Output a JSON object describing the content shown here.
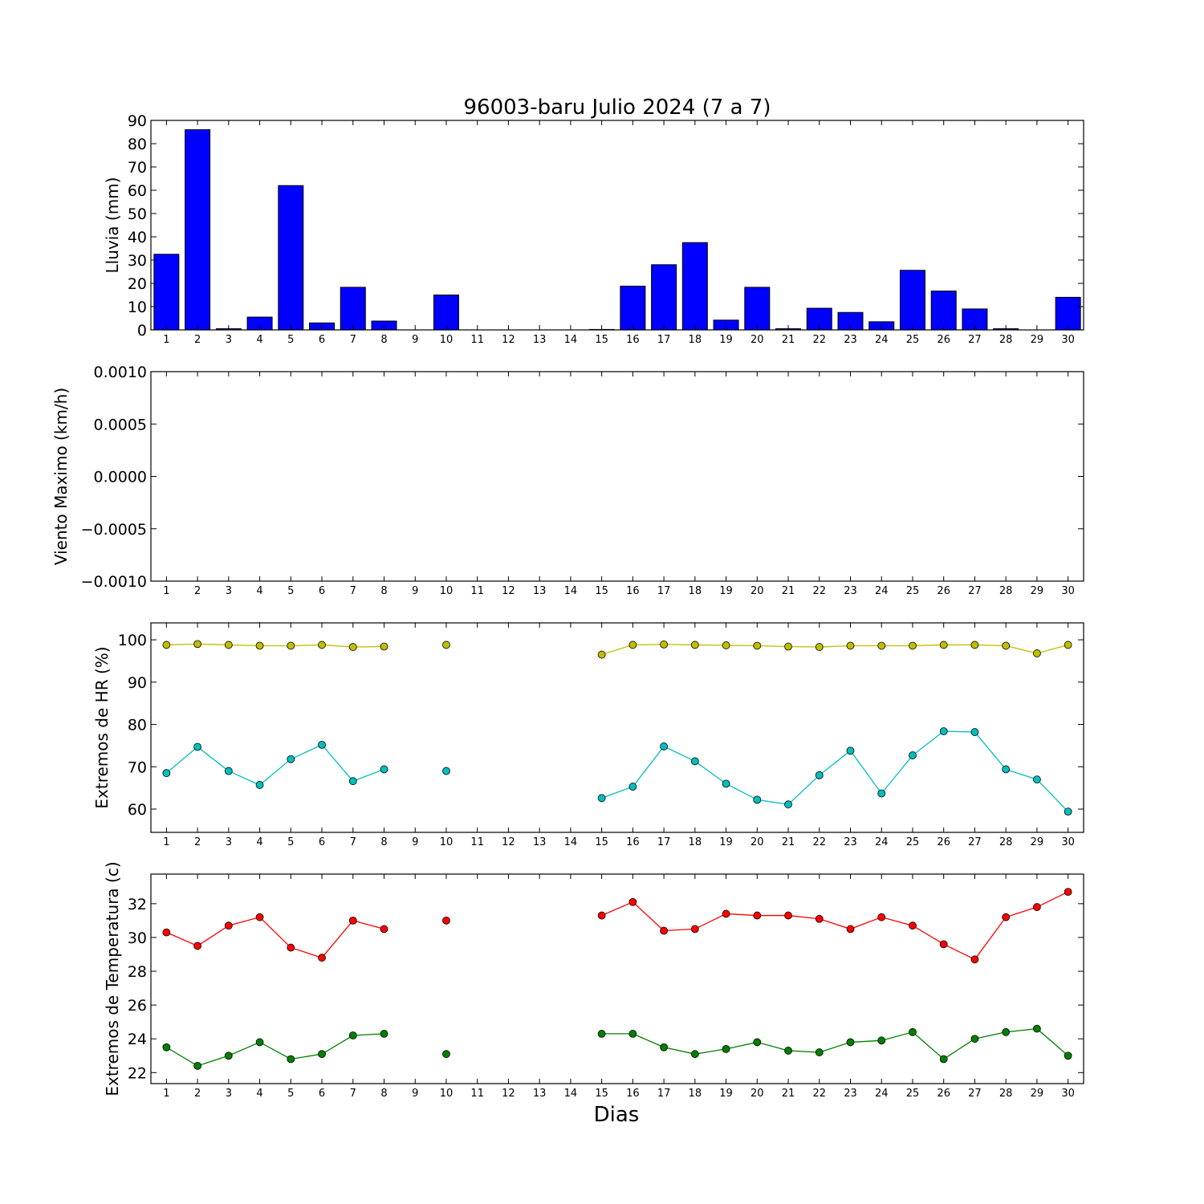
{
  "figure": {
    "title": "96003-baru Julio 2024  (7 a 7)",
    "xlabel": "Dias"
  },
  "chart_data": [
    {
      "type": "bar",
      "ylabel": "Lluvia (mm)",
      "ylim": [
        0,
        90
      ],
      "yticks": [
        0,
        10,
        20,
        30,
        40,
        50,
        60,
        70,
        80,
        90
      ],
      "ytick_labels": [
        "0",
        "10",
        "20",
        "30",
        "40",
        "50",
        "60",
        "70",
        "80",
        "90"
      ],
      "categories": [
        1,
        2,
        3,
        4,
        5,
        6,
        7,
        8,
        9,
        10,
        11,
        12,
        13,
        14,
        15,
        16,
        17,
        18,
        19,
        20,
        21,
        22,
        23,
        24,
        25,
        26,
        27,
        28,
        29,
        30
      ],
      "values": [
        32.5,
        86,
        0.5,
        5.5,
        62,
        3,
        18.3,
        3.8,
        0,
        15,
        0,
        0,
        0,
        0,
        0.2,
        18.8,
        28,
        37.5,
        4.2,
        18.3,
        0.5,
        9.3,
        7.5,
        3.5,
        25.6,
        16.7,
        9,
        0.5,
        0,
        14
      ],
      "color": "#0000ff",
      "grid": false
    },
    {
      "type": "line",
      "ylabel": "Viento Maximo (km/h)",
      "ylim": [
        -0.001,
        0.001
      ],
      "yticks": [
        -0.001,
        -0.0005,
        0,
        0.0005,
        0.001
      ],
      "ytick_labels": [
        "−0.0010",
        "−0.0005",
        "0.0000",
        "0.0005",
        "0.0010"
      ],
      "categories": [
        1,
        2,
        3,
        4,
        5,
        6,
        7,
        8,
        9,
        10,
        11,
        12,
        13,
        14,
        15,
        16,
        17,
        18,
        19,
        20,
        21,
        22,
        23,
        24,
        25,
        26,
        27,
        28,
        29,
        30
      ],
      "series": [],
      "grid": false
    },
    {
      "type": "line",
      "ylabel": "Extremos de HR (%)",
      "ylim": [
        54.5,
        104
      ],
      "yticks": [
        60,
        70,
        80,
        90,
        100
      ],
      "ytick_labels": [
        "60",
        "70",
        "80",
        "90",
        "100"
      ],
      "categories": [
        1,
        2,
        3,
        4,
        5,
        6,
        7,
        8,
        9,
        10,
        11,
        12,
        13,
        14,
        15,
        16,
        17,
        18,
        19,
        20,
        21,
        22,
        23,
        24,
        25,
        26,
        27,
        28,
        29,
        30
      ],
      "series": [
        {
          "color": "#bfbf00",
          "x": [
            1,
            2,
            3,
            4,
            5,
            6,
            7,
            8,
            9,
            10,
            11,
            12,
            13,
            14,
            15,
            16,
            17,
            18,
            19,
            20,
            21,
            22,
            23,
            24,
            25,
            26,
            27,
            28,
            29,
            30
          ],
          "values": [
            98.8,
            99,
            98.8,
            98.6,
            98.6,
            98.8,
            98.3,
            98.4,
            null,
            98.8,
            null,
            null,
            null,
            null,
            96.5,
            98.8,
            98.9,
            98.8,
            98.7,
            98.6,
            98.4,
            98.3,
            98.6,
            98.6,
            98.6,
            98.8,
            98.8,
            98.6,
            96.8,
            98.8
          ]
        },
        {
          "color": "#00bfbf",
          "x": [
            1,
            2,
            3,
            4,
            5,
            6,
            7,
            8,
            9,
            10,
            11,
            12,
            13,
            14,
            15,
            16,
            17,
            18,
            19,
            20,
            21,
            22,
            23,
            24,
            25,
            26,
            27,
            28,
            29,
            30
          ],
          "values": [
            68.5,
            74.7,
            69,
            65.7,
            71.8,
            75.2,
            66.6,
            69.4,
            null,
            69,
            null,
            null,
            null,
            null,
            62.6,
            65.3,
            74.8,
            71.3,
            66,
            62.2,
            61.1,
            68,
            73.8,
            63.7,
            72.7,
            78.4,
            78.2,
            69.4,
            67,
            59.4
          ]
        }
      ],
      "grid": false
    },
    {
      "type": "line",
      "ylabel": "Extremos de Temperatura (c)",
      "ylim": [
        21.35,
        33.75
      ],
      "yticks": [
        22,
        24,
        26,
        28,
        30,
        32
      ],
      "ytick_labels": [
        "22",
        "24",
        "26",
        "28",
        "30",
        "32"
      ],
      "categories": [
        1,
        2,
        3,
        4,
        5,
        6,
        7,
        8,
        9,
        10,
        11,
        12,
        13,
        14,
        15,
        16,
        17,
        18,
        19,
        20,
        21,
        22,
        23,
        24,
        25,
        26,
        27,
        28,
        29,
        30
      ],
      "series": [
        {
          "color": "#ff0000",
          "x": [
            1,
            2,
            3,
            4,
            5,
            6,
            7,
            8,
            9,
            10,
            11,
            12,
            13,
            14,
            15,
            16,
            17,
            18,
            19,
            20,
            21,
            22,
            23,
            24,
            25,
            26,
            27,
            28,
            29,
            30
          ],
          "values": [
            30.3,
            29.5,
            30.7,
            31.2,
            29.4,
            28.8,
            31,
            30.5,
            null,
            31,
            null,
            null,
            null,
            null,
            31.3,
            32.1,
            30.4,
            30.5,
            31.4,
            31.3,
            31.3,
            31.1,
            30.5,
            31.2,
            30.7,
            29.6,
            28.7,
            31.2,
            31.8,
            32.7
          ]
        },
        {
          "color": "#008000",
          "x": [
            1,
            2,
            3,
            4,
            5,
            6,
            7,
            8,
            9,
            10,
            11,
            12,
            13,
            14,
            15,
            16,
            17,
            18,
            19,
            20,
            21,
            22,
            23,
            24,
            25,
            26,
            27,
            28,
            29,
            30
          ],
          "values": [
            23.5,
            22.4,
            23,
            23.8,
            22.8,
            23.1,
            24.2,
            24.3,
            null,
            23.1,
            null,
            null,
            null,
            null,
            24.3,
            24.3,
            23.5,
            23.1,
            23.4,
            23.8,
            23.3,
            23.2,
            23.8,
            23.9,
            24.4,
            22.8,
            24,
            24.4,
            24.6,
            23
          ]
        }
      ],
      "grid": false
    }
  ]
}
